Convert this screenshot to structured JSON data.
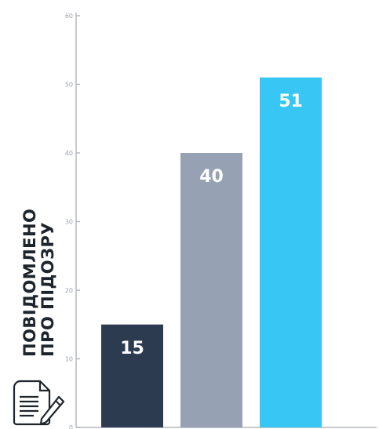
{
  "chart_data": {
    "type": "bar",
    "title": "",
    "xlabel": "",
    "ylabel": [
      "ПОВІДОМЛЕНО",
      "ПРО ПІДОЗРУ"
    ],
    "ylim": [
      0,
      60
    ],
    "yticks": [
      0,
      10,
      20,
      30,
      40,
      50,
      60
    ],
    "grid": false,
    "values": [
      15,
      40,
      51
    ],
    "value_labels": [
      "15",
      "40",
      "51"
    ],
    "colors": [
      "#2d3b50",
      "#96a2b4",
      "#38c6f4"
    ],
    "axis_color": "#b5b9bf",
    "icon": "document-pen-icon"
  }
}
